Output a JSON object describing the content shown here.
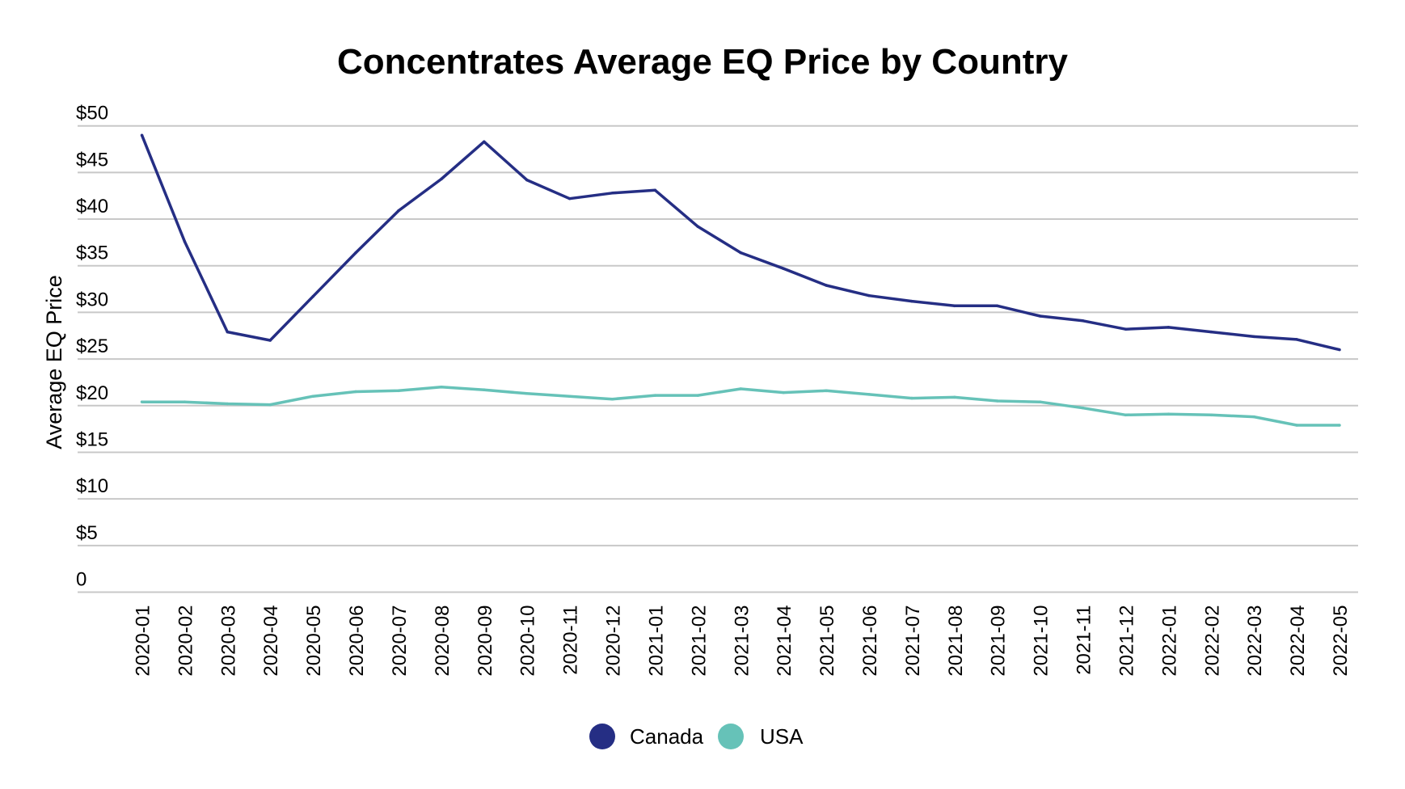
{
  "chart_data": {
    "type": "line",
    "title": "Concentrates Average EQ Price by Country",
    "xlabel": "",
    "ylabel": "Average EQ Price",
    "ylim": [
      0,
      50
    ],
    "yticks": [
      0,
      5,
      10,
      15,
      20,
      25,
      30,
      35,
      40,
      45,
      50
    ],
    "ytick_labels": [
      "0",
      "$5",
      "$10",
      "$15",
      "$20",
      "$25",
      "$30",
      "$35",
      "$40",
      "$45",
      "$50"
    ],
    "grid": true,
    "legend_position": "bottom-center",
    "x": [
      "2020-01",
      "2020-02",
      "2020-03",
      "2020-04",
      "2020-05",
      "2020-06",
      "2020-07",
      "2020-08",
      "2020-09",
      "2020-10",
      "2020-11",
      "2020-12",
      "2021-01",
      "2021-02",
      "2021-03",
      "2021-04",
      "2021-05",
      "2021-06",
      "2021-07",
      "2021-08",
      "2021-09",
      "2021-10",
      "2021-11",
      "2021-12",
      "2022-01",
      "2022-02",
      "2022-03",
      "2022-04",
      "2022-05"
    ],
    "series": [
      {
        "name": "Canada",
        "color": "#252e84",
        "values": [
          49.0,
          37.6,
          27.9,
          27.0,
          31.7,
          36.4,
          40.9,
          44.3,
          48.3,
          44.2,
          42.2,
          42.8,
          43.1,
          39.2,
          36.4,
          34.7,
          32.9,
          31.8,
          31.2,
          30.7,
          30.7,
          29.6,
          29.1,
          28.2,
          28.4,
          27.9,
          27.4,
          27.1,
          26.0
        ]
      },
      {
        "name": "USA",
        "color": "#66c2b8",
        "values": [
          20.4,
          20.4,
          20.2,
          20.1,
          21.0,
          21.5,
          21.6,
          22.0,
          21.7,
          21.3,
          21.0,
          20.7,
          21.1,
          21.1,
          21.8,
          21.4,
          21.6,
          21.2,
          20.8,
          20.9,
          20.5,
          20.4,
          19.75,
          19.0,
          19.1,
          19.0,
          18.8,
          17.9,
          17.9
        ]
      }
    ]
  }
}
